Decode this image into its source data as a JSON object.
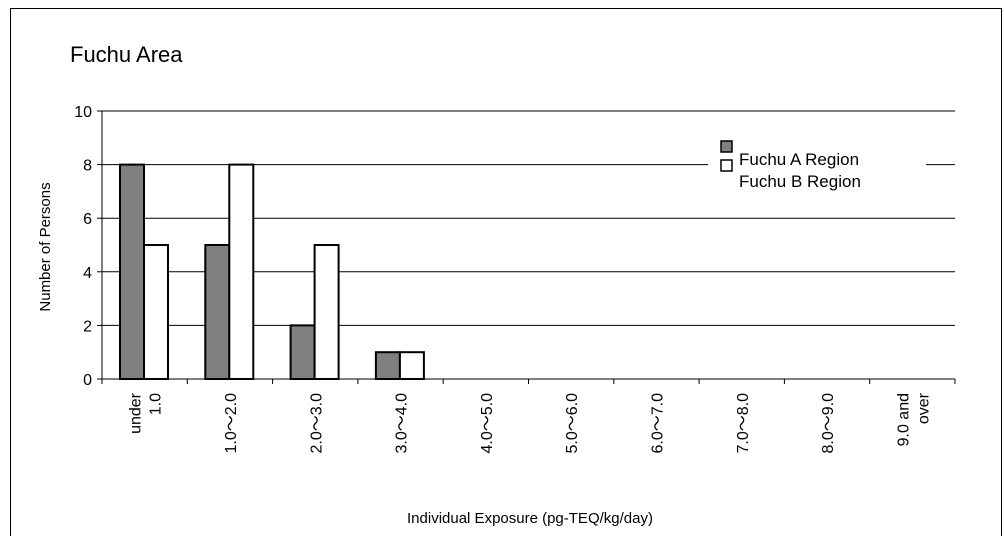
{
  "chart_data": {
    "type": "bar",
    "title": "Fuchu Area",
    "xlabel": "Individual Exposure (pg-TEQ/kg/day)",
    "ylabel": "Number of Persons",
    "categories": [
      [
        "under",
        "1.0"
      ],
      [
        "1.0～2.0"
      ],
      [
        "2.0～3.0"
      ],
      [
        "3.0～4.0"
      ],
      [
        "4.0～5.0"
      ],
      [
        "5.0～6.0"
      ],
      [
        "6.0～7.0"
      ],
      [
        "7.0～8.0"
      ],
      [
        "8.0～9.0"
      ],
      [
        "9.0 and",
        "over"
      ]
    ],
    "series": [
      {
        "name": "Fuchu A Region",
        "values": [
          8,
          5,
          2,
          1,
          0,
          0,
          0,
          0,
          0,
          0
        ],
        "color": "#808080"
      },
      {
        "name": "Fuchu B Region",
        "values": [
          5,
          8,
          5,
          1,
          0,
          0,
          0,
          0,
          0,
          0
        ],
        "color": "#ffffff"
      }
    ],
    "ylim": [
      0,
      10
    ],
    "yticks": [
      0,
      2,
      4,
      6,
      8,
      10
    ],
    "grid": true,
    "legend_position": "top-right"
  }
}
